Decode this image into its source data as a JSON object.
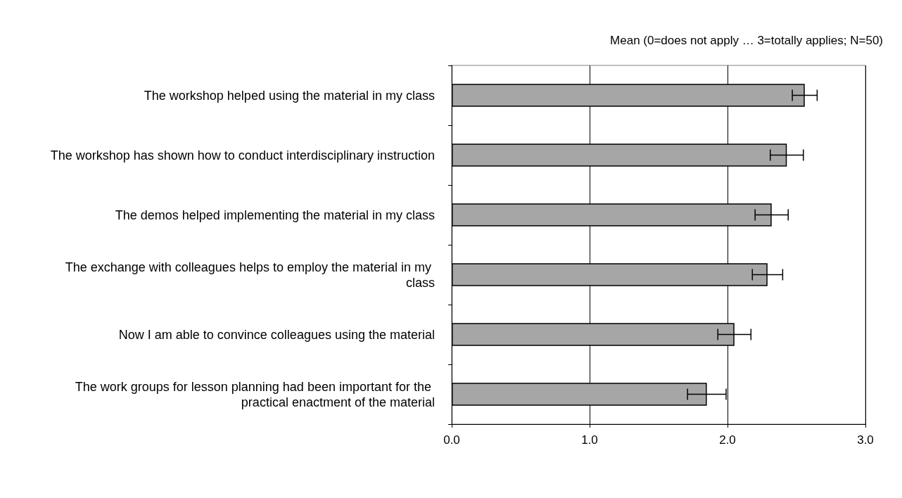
{
  "chart_data": {
    "type": "bar",
    "orientation": "horizontal",
    "title": "Mean (0=does not apply … 3=totally applies; N=50)",
    "categories": [
      "The workshop helped using the material in my class",
      "The workshop has shown how to conduct interdisciplinary instruction",
      "The demos helped implementing the material in my class",
      "The exchange with colleagues helps to employ the material in my class",
      "Now I am able to convince colleagues using the material",
      "The work groups for lesson planning had been important for the practical enactment of the material"
    ],
    "values": [
      2.56,
      2.43,
      2.32,
      2.29,
      2.05,
      1.85
    ],
    "errors": [
      0.09,
      0.12,
      0.12,
      0.11,
      0.12,
      0.14
    ],
    "color": "#a6a6a6",
    "xlim": [
      0,
      3
    ],
    "xticks": [
      {
        "value": 0,
        "label": "0.0"
      },
      {
        "value": 1,
        "label": "1.0"
      },
      {
        "value": 2,
        "label": "2.0"
      },
      {
        "value": 3,
        "label": "3.0"
      }
    ],
    "grid": "x"
  }
}
